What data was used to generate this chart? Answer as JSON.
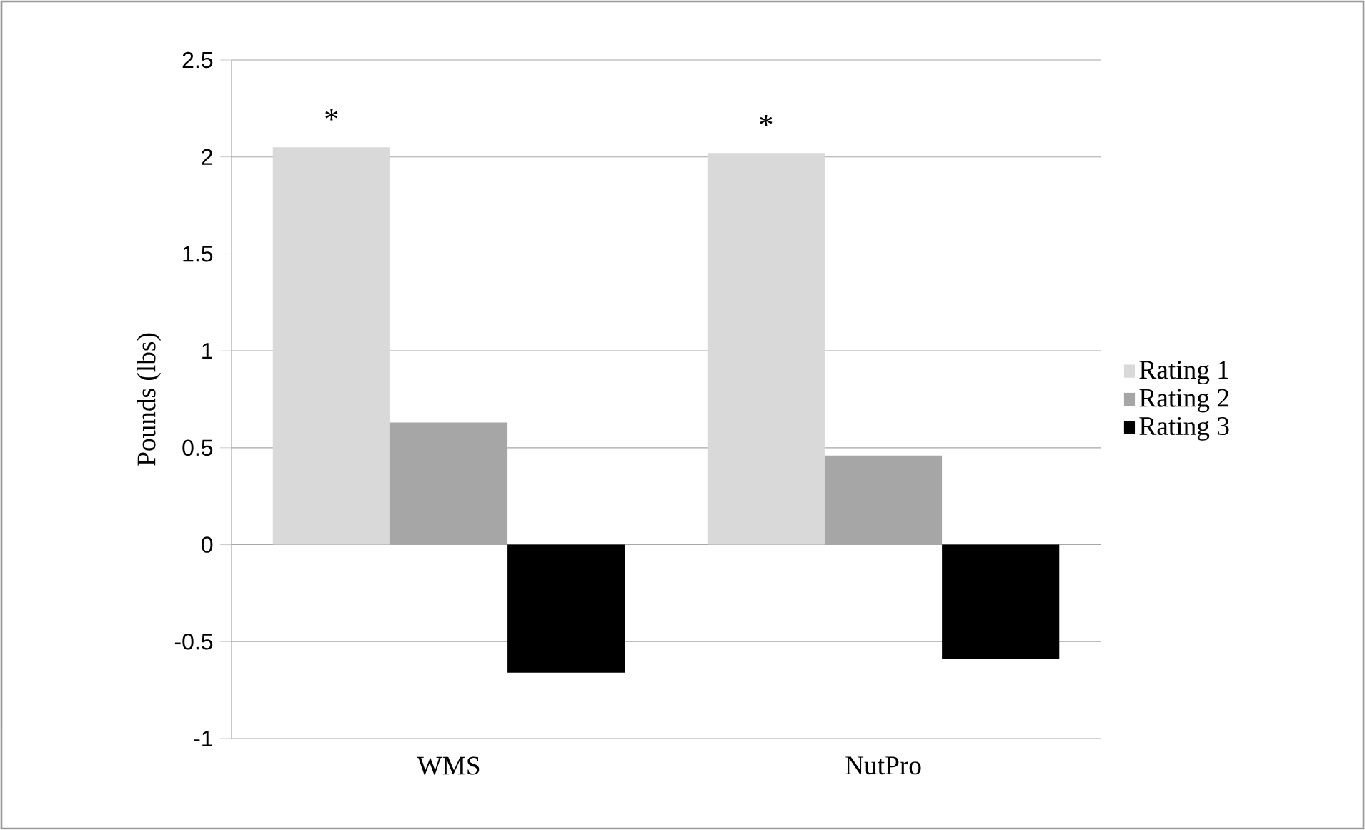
{
  "chart_data": {
    "type": "bar",
    "ylabel": "Pounds (lbs)",
    "categories": [
      "WMS",
      "NutPro"
    ],
    "series": [
      {
        "name": "Rating 1",
        "color": "#d9d9d9",
        "values": [
          2.05,
          2.02
        ]
      },
      {
        "name": "Rating 2",
        "color": "#a6a6a6",
        "values": [
          0.63,
          0.46
        ]
      },
      {
        "name": "Rating 3",
        "color": "#000000",
        "values": [
          -0.66,
          -0.59
        ]
      }
    ],
    "ylim": [
      -1,
      2.5
    ],
    "yticks": [
      -1,
      -0.5,
      0,
      0.5,
      1,
      1.5,
      2,
      2.5
    ],
    "grid": "y",
    "legend": "right",
    "annotations": [
      "*",
      "*"
    ]
  }
}
